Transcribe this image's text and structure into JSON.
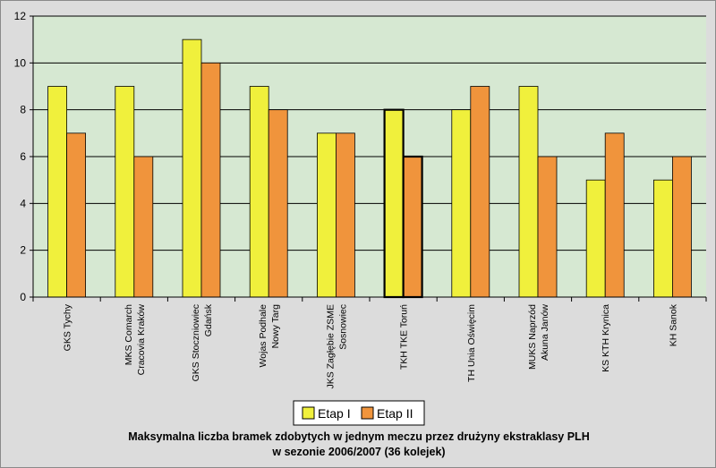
{
  "chart_data": {
    "type": "bar",
    "title_lines": [
      "Maksymalna liczba bramek zdobytych w jednym meczu przez drużyny ekstraklasy PLH",
      "w sezonie 2006/2007 (36 kolejek)"
    ],
    "categories": [
      [
        "GKS Tychy"
      ],
      [
        "MKS Comarch",
        "Cracovia Kraków"
      ],
      [
        "GKS Stoczniowiec",
        "Gdańsk"
      ],
      [
        "Wojas Podhale",
        "Nowy Targ"
      ],
      [
        "JKS Zagłębie ZSME",
        "Sosnowiec"
      ],
      [
        "TKH TKE Toruń"
      ],
      [
        "TH Unia Oświęcim"
      ],
      [
        "MUKS Naprzód",
        "Akuna Janów"
      ],
      [
        "KS KTH Krynica"
      ],
      [
        "KH Sanok"
      ]
    ],
    "series": [
      {
        "name": "Etap I",
        "values": [
          9,
          9,
          11,
          9,
          7,
          8,
          8,
          9,
          5,
          5
        ],
        "color": "#f0f03c"
      },
      {
        "name": "Etap II",
        "values": [
          7,
          6,
          10,
          8,
          7,
          6,
          9,
          6,
          7,
          6
        ],
        "color": "#f0943c"
      }
    ],
    "highlighted_category_index": 5,
    "ylim": [
      0,
      12
    ],
    "yticks": [
      "0",
      "2",
      "4",
      "6",
      "8",
      "10",
      "12"
    ],
    "grid": true,
    "legend": "bottom-center",
    "plot_background": "#d6e8d2"
  }
}
